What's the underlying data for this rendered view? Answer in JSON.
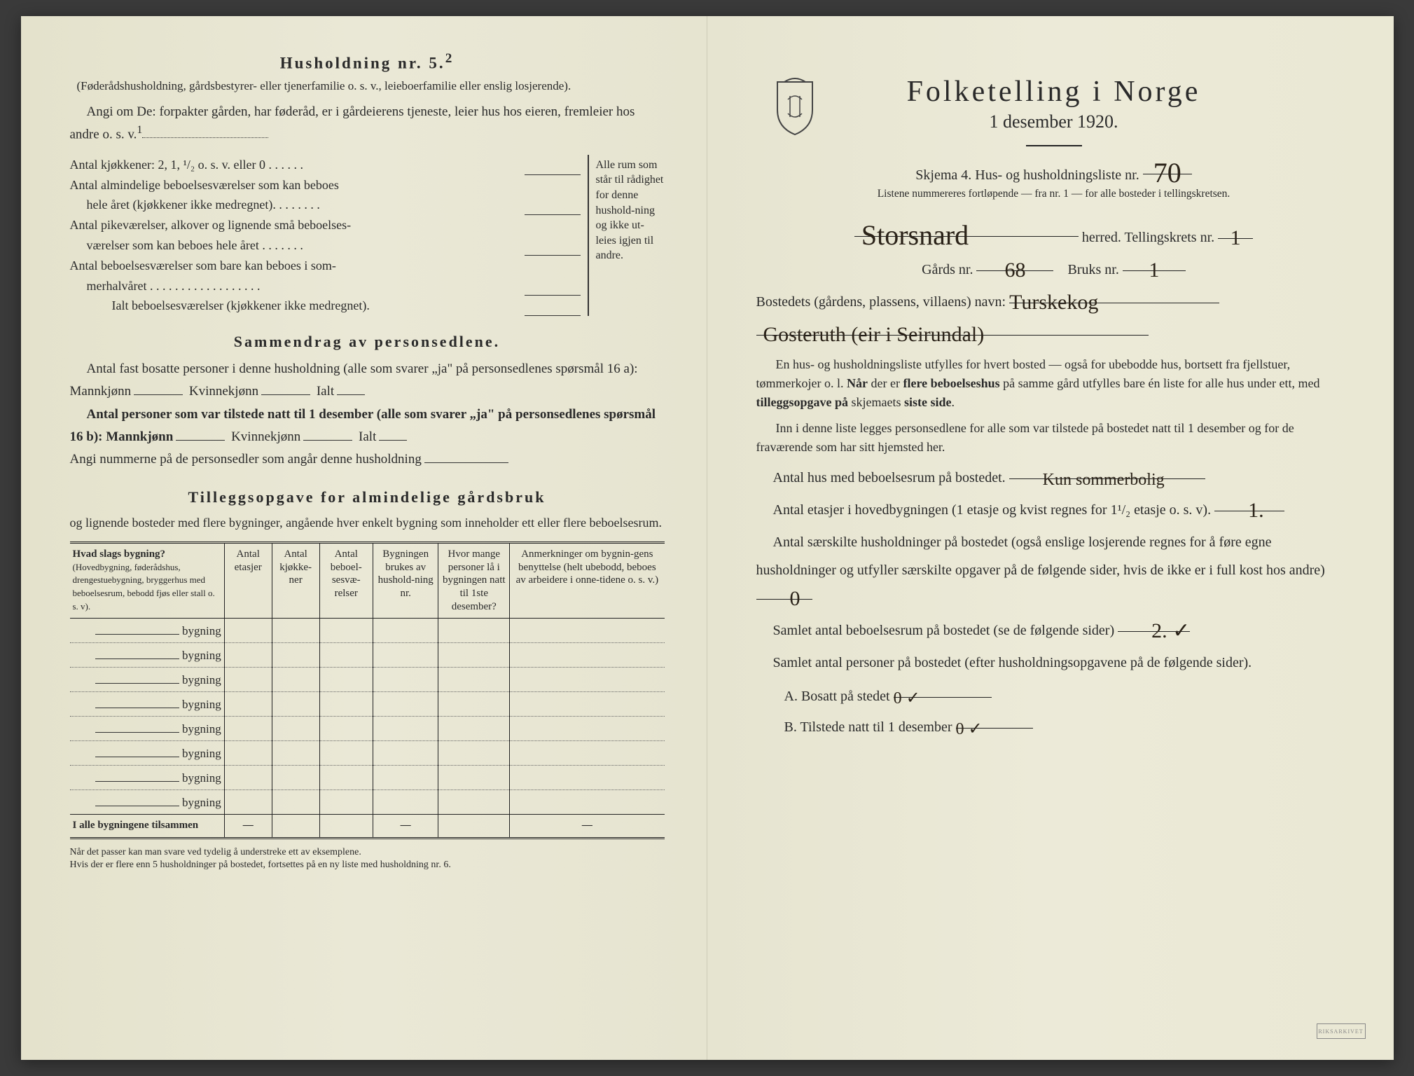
{
  "colors": {
    "paper": "#e8e6d4",
    "ink": "#2a2a2a",
    "handwriting": "#2a2218",
    "background": "#3a3a3a"
  },
  "left": {
    "h5_heading": "Husholdning nr. 5.",
    "h5_sup": "2",
    "h5_paren": "(Føderådshusholdning, gårdsbestyrer- eller tjenerfamilie o. s. v., leieboerfamilie eller enslig losjerende).",
    "angi_line": "Angi om De:  forpakter gården, har føderåd, er i gårdeierens tjeneste, leier hus hos eieren, fremleier hos andre o. s. v.",
    "angi_sup": "1",
    "kitchen": {
      "r1": "Antal kjøkkener: 2, 1, ¹/₂ o. s. v. eller 0 . . . . . .",
      "r2a": "Antal almindelige beboelsesværelser som kan beboes",
      "r2b": "hele året (kjøkkener ikke medregnet). . . . . . . .",
      "r3a": "Antal pikeværelser, alkover og lignende små beboelses-",
      "r3b": "værelser som kan beboes hele året  . . . . . . .",
      "r4a": "Antal beboelsesværelser som bare kan beboes i som-",
      "r4b": "merhalvåret . . . . . . . . . . . . . . . . . .",
      "r5": "Ialt beboelsesværelser  (kjøkkener ikke medregnet).",
      "side": "Alle rum som står til rådighet for denne hushold-ning og ikke ut-leies igjen til andre."
    },
    "sammendrag_heading": "Sammendrag av personsedlene.",
    "sammen_l1": "Antal fast bosatte personer i denne husholdning (alle som svarer „ja\" på personsedlenes spørsmål 16 a): Mannkjønn",
    "kvinne": "Kvinnekjønn",
    "ialt": "Ialt",
    "sammen_l2": "Antal personer som var tilstede natt til 1 desember (alle som svarer „ja\" på personsedlenes spørsmål 16 b): Mannkjønn",
    "angi_num": "Angi nummerne på de personsedler som angår denne husholdning",
    "tillegg_heading": "Tilleggsopgave for almindelige gårdsbruk",
    "tillegg_text": "og lignende bosteder med flere bygninger, angående hver enkelt bygning som inneholder ett eller flere beboelsesrum.",
    "table": {
      "h1a": "Hvad slags bygning?",
      "h1b": "(Hovedbygning, føderådshus, drengestuebygning, bryggerhus med beboelsesrum, bebodd fjøs eller stall o. s. v).",
      "h2": "Antal etasjer",
      "h3": "Antal kjøkke-ner",
      "h4": "Antal beboel-sesvæ-relser",
      "h5": "Bygningen brukes av hushold-ning nr.",
      "h6": "Hvor mange personer lå i bygningen natt til 1ste desember?",
      "h7": "Anmerkninger om bygnin-gens benyttelse (helt ubebodd, beboes av arbeidere i onne-tidene o. s. v.)",
      "row_label": "bygning",
      "total": "I alle bygningene tilsammen",
      "rows": 8
    },
    "footnote": "Når det passer kan man svare ved tydelig å understreke ett av eksemplene.\nHvis der er flere enn 5 husholdninger på bostedet, fortsettes på en ny liste med husholdning nr. 6."
  },
  "right": {
    "title": "Folketelling  i  Norge",
    "subtitle": "1 desember 1920.",
    "skjema": "Skjema 4.  Hus- og husholdningsliste nr.",
    "skjema_hw": "70",
    "listene": "Listene nummereres fortløpende — fra nr. 1 — for alle bosteder i tellingskretsen.",
    "herred_hw": "Storsnard",
    "herred_label": "herred.   Tellingskrets nr.",
    "krets_hw": "1",
    "gards_label": "Gårds nr.",
    "gards_hw": "68",
    "bruks_label": "Bruks nr.",
    "bruks_hw": "1",
    "bosted_label": "Bostedets (gårdens, plassens, villaens) navn:",
    "bosted_hw1": "Turskekog",
    "bosted_hw2": "Gosteruth (eir i Seirundal)",
    "instr1": "En hus- og husholdningsliste utfylles for hvert bosted — også for ubebodde hus, bortsett fra fjellstuer, tømmerkojer o. l.  Når der er flere beboelseshus på samme gård utfylles bare én liste for alle hus under ett, med tilleggsopgave på skjemaets siste side.",
    "instr2": "Inn i denne liste legges personsedlene for alle som var tilstede på bostedet natt til 1 desember og for de fraværende som har sitt hjemsted her.",
    "q1_label": "Antal hus med beboelsesrum på bostedet.",
    "q1_hw": "Kun sommerbolig",
    "q2_label": "Antal etasjer i hovedbygningen (1 etasje og kvist regnes for 1¹/₂ etasje o. s. v).",
    "q2_hw": "1.",
    "q3_label": "Antal særskilte husholdninger på bostedet (også enslige losjerende regnes for å føre egne husholdninger og utfyller særskilte opgaver på de følgende sider, hvis de ikke er i full kost hos andre)",
    "q3_hw": "0",
    "q4_label": "Samlet antal beboelsesrum på bostedet (se de følgende sider)",
    "q4_hw": "2. ✓",
    "q5_label": "Samlet antal personer på bostedet (efter husholdningsopgavene på de følgende sider).",
    "qA_label": "A.  Bosatt på stedet",
    "qA_hw": "0 ✓",
    "qB_label": "B.  Tilstede natt til 1 desember",
    "qB_hw": "0 ✓"
  }
}
